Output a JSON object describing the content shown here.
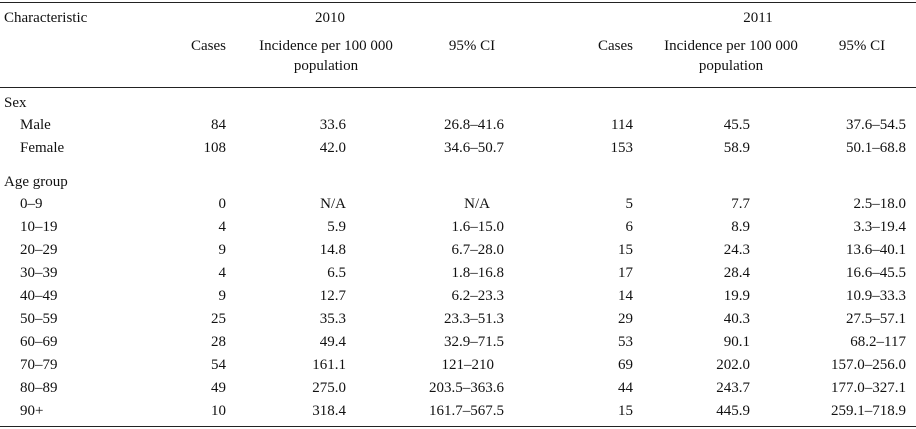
{
  "header": {
    "characteristic": "Characteristic",
    "year_2010": "2010",
    "year_2011": "2011",
    "cases": "Cases",
    "incidence_line1": "Incidence per 100 000",
    "incidence_line2": "population",
    "ci": "95% CI"
  },
  "sections": {
    "sex": "Sex",
    "age_group": "Age group"
  },
  "sex_rows": [
    {
      "label": "Male",
      "c2010": "84",
      "i2010": "33.6",
      "ci2010": "26.8–41.6",
      "c2011": "114",
      "i2011": "45.5",
      "ci2011": "37.6–54.5"
    },
    {
      "label": "Female",
      "c2010": "108",
      "i2010": "42.0",
      "ci2010": "34.6–50.7",
      "c2011": "153",
      "i2011": "58.9",
      "ci2011": "50.1–68.8"
    }
  ],
  "age_rows": [
    {
      "label": "0–9",
      "c2010": "0",
      "i2010": "N/A",
      "ci2010": "N/A",
      "c2011": "5",
      "i2011": "7.7",
      "ci2011": "2.5–18.0"
    },
    {
      "label": "10–19",
      "c2010": "4",
      "i2010": "5.9",
      "ci2010": "1.6–15.0",
      "c2011": "6",
      "i2011": "8.9",
      "ci2011": "3.3–19.4"
    },
    {
      "label": "20–29",
      "c2010": "9",
      "i2010": "14.8",
      "ci2010": "6.7–28.0",
      "c2011": "15",
      "i2011": "24.3",
      "ci2011": "13.6–40.1"
    },
    {
      "label": "30–39",
      "c2010": "4",
      "i2010": "6.5",
      "ci2010": "1.8–16.8",
      "c2011": "17",
      "i2011": "28.4",
      "ci2011": "16.6–45.5"
    },
    {
      "label": "40–49",
      "c2010": "9",
      "i2010": "12.7",
      "ci2010": "6.2–23.3",
      "c2011": "14",
      "i2011": "19.9",
      "ci2011": "10.9–33.3"
    },
    {
      "label": "50–59",
      "c2010": "25",
      "i2010": "35.3",
      "ci2010": "23.3–51.3",
      "c2011": "29",
      "i2011": "40.3",
      "ci2011": "27.5–57.1"
    },
    {
      "label": "60–69",
      "c2010": "28",
      "i2010": "49.4",
      "ci2010": "32.9–71.5",
      "c2011": "53",
      "i2011": "90.1",
      "ci2011": "68.2–117"
    },
    {
      "label": "70–79",
      "c2010": "54",
      "i2010": "161.1",
      "ci2010": "121–210",
      "c2011": "69",
      "i2011": "202.0",
      "ci2011": "157.0–256.0"
    },
    {
      "label": "80–89",
      "c2010": "49",
      "i2010": "275.0",
      "ci2010": "203.5–363.6",
      "c2011": "44",
      "i2011": "243.7",
      "ci2011": "177.0–327.1"
    },
    {
      "label": "90+",
      "c2010": "10",
      "i2010": "318.4",
      "ci2010": "161.7–567.5",
      "c2011": "15",
      "i2011": "445.9",
      "ci2011": "259.1–718.9"
    }
  ]
}
